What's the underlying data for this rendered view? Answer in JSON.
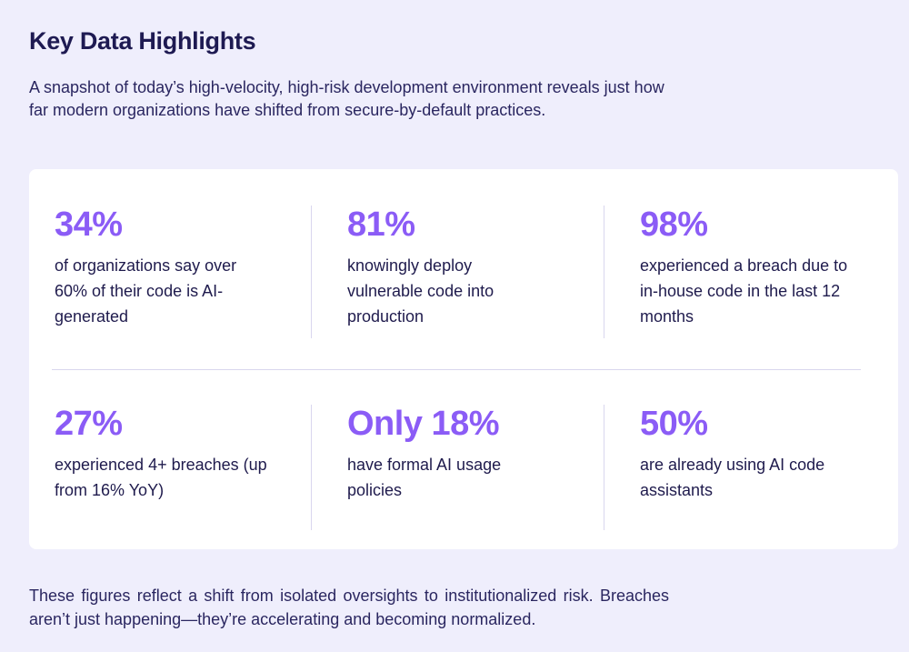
{
  "header": {
    "title": "Key Data Highlights",
    "subtitle": "A snapshot of today’s high-velocity, high-risk development environment reveals just how far modern organizations have shifted from secure-by-default practices."
  },
  "stats": [
    {
      "value": "34%",
      "description": "of organizations say over 60% of their code is AI-generated"
    },
    {
      "value": "81%",
      "description": "knowingly deploy vulnerable code into production"
    },
    {
      "value": "98%",
      "description": "experienced a breach due to in-house code in the last 12 months"
    },
    {
      "value": "27%",
      "description": "experienced 4+ breaches (up from 16% YoY)"
    },
    {
      "value": "Only 18%",
      "description": "have formal AI usage policies"
    },
    {
      "value": "50%",
      "description": "are already using AI code assistants"
    }
  ],
  "footer": {
    "text": "These figures reflect a shift from isolated oversights to institutionalized risk. Breaches aren’t just happening—they’re accelerating and becoming normalized."
  },
  "colors": {
    "background": "#efeefc",
    "accent": "#8b5cf6",
    "text": "#1f1b4d"
  }
}
